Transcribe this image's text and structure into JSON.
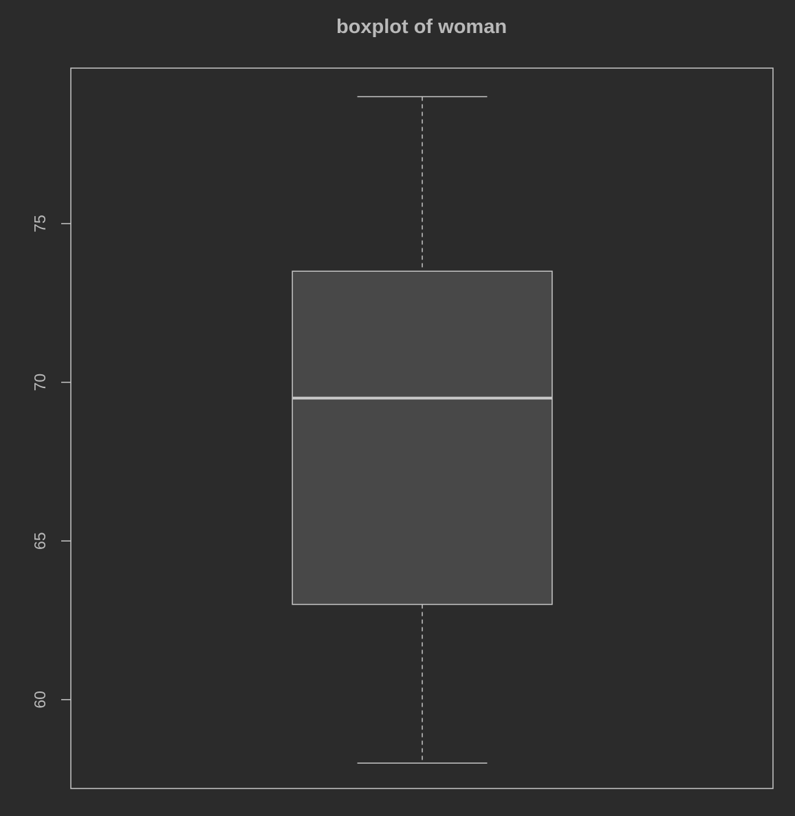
{
  "chart_data": {
    "type": "boxplot",
    "title": "boxplot of woman",
    "xlabel": "",
    "ylabel": "",
    "y_ticks": [
      60,
      65,
      70,
      75
    ],
    "y_tick_labels": [
      "60",
      "65",
      "70",
      "75"
    ],
    "ylim": [
      57.2,
      79.9
    ],
    "grid": false,
    "legend": "none",
    "series": [
      {
        "whisker_low": 58,
        "q1": 63,
        "median": 69.5,
        "q3": 73.5,
        "whisker_high": 79
      }
    ],
    "colors": {
      "background": "#2b2b2b",
      "box_fill": "#484848",
      "lines": "#c8c8c8",
      "text": "#b9b9b9"
    }
  }
}
